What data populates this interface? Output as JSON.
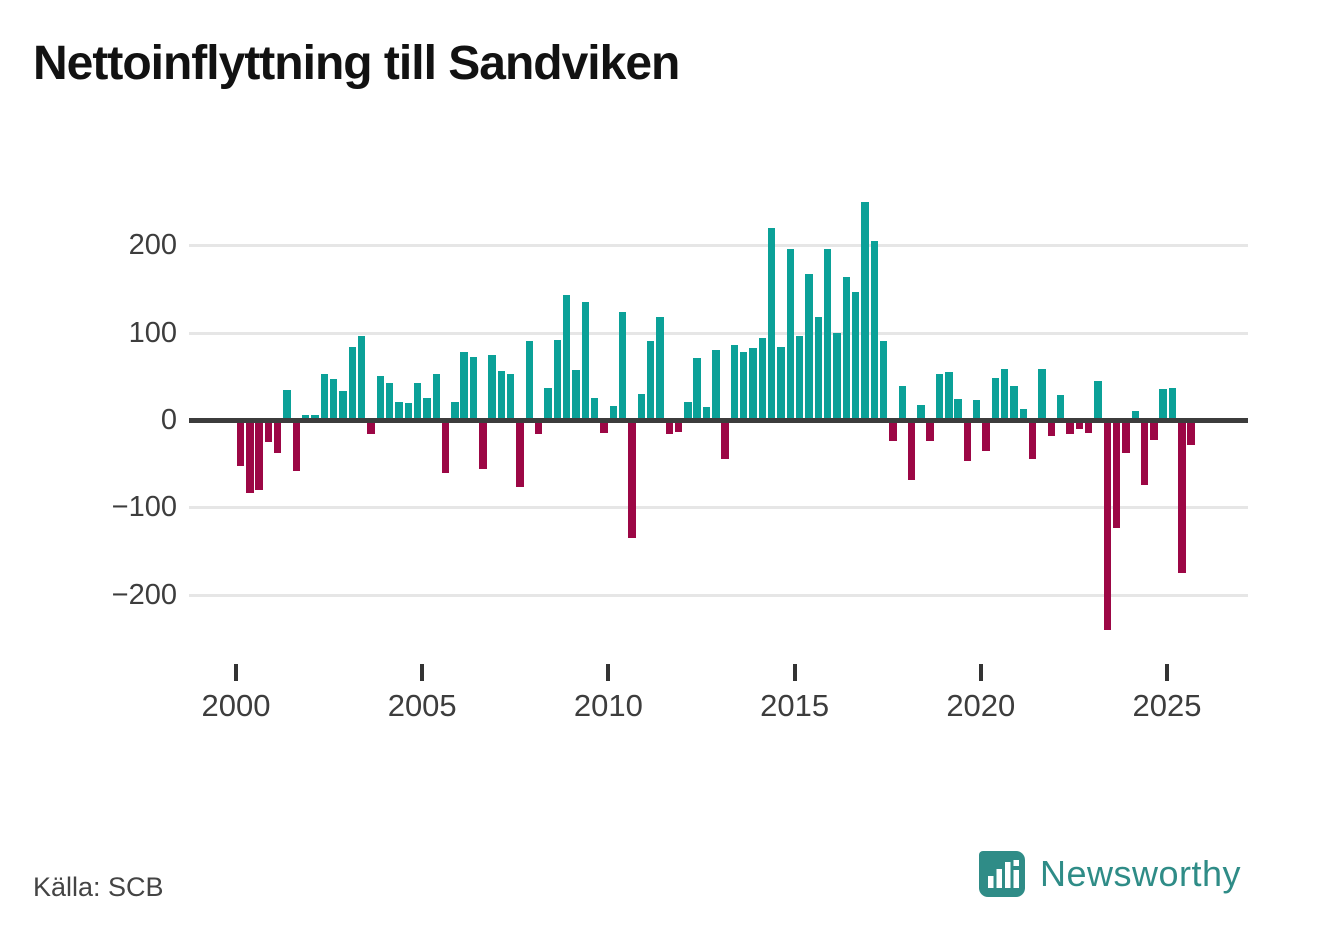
{
  "title": "Nettoinflyttning till Sandviken",
  "source": "Källa: SCB",
  "logo": {
    "text": "Newsworthy",
    "color": "#2f8c87"
  },
  "colors": {
    "positive": "#0ba198",
    "negative": "#9c0745",
    "axis": "#3c3c3c",
    "gridline": "#e6e6e6",
    "label": "#3d3d3d"
  },
  "chart_data": {
    "type": "bar",
    "title": "Nettoinflyttning till Sandviken",
    "xlabel": "",
    "ylabel": "",
    "grid": "horizontal",
    "ylim": [
      -260,
      270
    ],
    "ytick_values": [
      200,
      100,
      0,
      -100,
      -200
    ],
    "ytick_labels": [
      "200",
      "100",
      "0",
      "−100",
      "−200"
    ],
    "xtick_labels": [
      "2000",
      "2005",
      "2010",
      "2015",
      "2020",
      "2025"
    ],
    "start_year": 2000,
    "start_quarter": 1,
    "x": [
      "2000Q1",
      "2000Q2",
      "2000Q3",
      "2000Q4",
      "2001Q1",
      "2001Q2",
      "2001Q3",
      "2001Q4",
      "2002Q1",
      "2002Q2",
      "2002Q3",
      "2002Q4",
      "2003Q1",
      "2003Q2",
      "2003Q3",
      "2003Q4",
      "2004Q1",
      "2004Q2",
      "2004Q3",
      "2004Q4",
      "2005Q1",
      "2005Q2",
      "2005Q3",
      "2005Q4",
      "2006Q1",
      "2006Q2",
      "2006Q3",
      "2006Q4",
      "2007Q1",
      "2007Q2",
      "2007Q3",
      "2007Q4",
      "2008Q1",
      "2008Q2",
      "2008Q3",
      "2008Q4",
      "2009Q1",
      "2009Q2",
      "2009Q3",
      "2009Q4",
      "2010Q1",
      "2010Q2",
      "2010Q3",
      "2010Q4",
      "2011Q1",
      "2011Q2",
      "2011Q3",
      "2011Q4",
      "2012Q1",
      "2012Q2",
      "2012Q3",
      "2012Q4",
      "2013Q1",
      "2013Q2",
      "2013Q3",
      "2013Q4",
      "2014Q1",
      "2014Q2",
      "2014Q3",
      "2014Q4",
      "2015Q1",
      "2015Q2",
      "2015Q3",
      "2015Q4",
      "2016Q1",
      "2016Q2",
      "2016Q3",
      "2016Q4",
      "2017Q1",
      "2017Q2",
      "2017Q3",
      "2017Q4",
      "2018Q1",
      "2018Q2",
      "2018Q3",
      "2018Q4",
      "2019Q1",
      "2019Q2",
      "2019Q3",
      "2019Q4",
      "2020Q1",
      "2020Q2",
      "2020Q3",
      "2020Q4",
      "2021Q1",
      "2021Q2",
      "2021Q3",
      "2021Q4",
      "2022Q1",
      "2022Q2",
      "2022Q3",
      "2022Q4",
      "2023Q1",
      "2023Q2",
      "2023Q3",
      "2023Q4",
      "2024Q1",
      "2024Q2",
      "2024Q3",
      "2024Q4",
      "2025Q1",
      "2025Q2",
      "2025Q3"
    ],
    "values": [
      -52,
      -83,
      -80,
      -25,
      -37,
      35,
      -58,
      6,
      6,
      53,
      48,
      34,
      84,
      97,
      -16,
      51,
      43,
      21,
      20,
      43,
      26,
      53,
      -60,
      21,
      78,
      73,
      -56,
      75,
      57,
      53,
      -76,
      91,
      -16,
      37,
      92,
      144,
      58,
      136,
      26,
      -14,
      17,
      124,
      -135,
      30,
      91,
      118,
      -16,
      -13,
      21,
      72,
      16,
      81,
      -44,
      86,
      79,
      83,
      94,
      220,
      84,
      197,
      97,
      168,
      119,
      197,
      100,
      164,
      147,
      250,
      206,
      91,
      -24,
      40,
      -68,
      18,
      -24,
      53,
      56,
      25,
      -46,
      24,
      -35,
      49,
      59,
      39,
      13,
      -44,
      59,
      -18,
      29,
      -16,
      -10,
      -14,
      45,
      -240,
      -123,
      -37,
      11,
      -74,
      -22,
      36,
      37,
      -175,
      -28
    ]
  }
}
